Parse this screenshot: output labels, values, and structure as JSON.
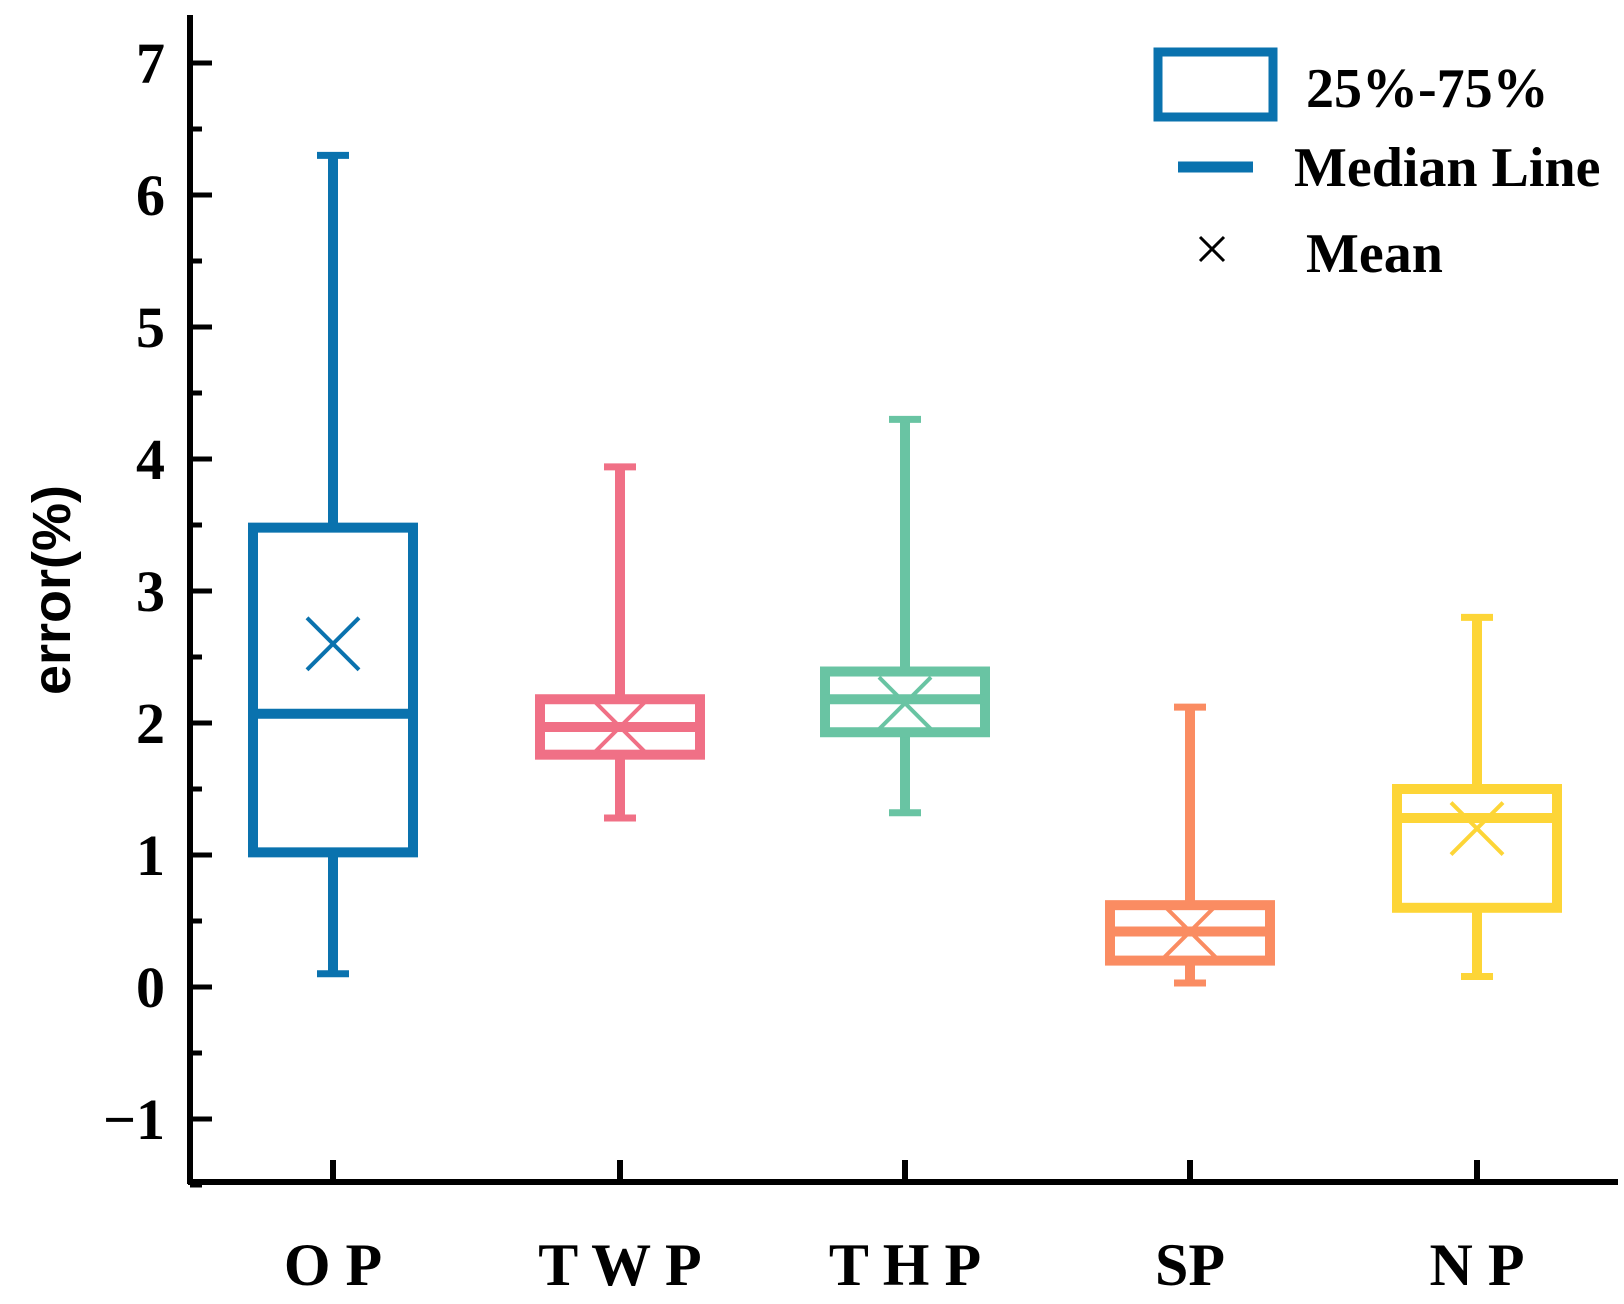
{
  "chart_data": {
    "type": "box",
    "title": "",
    "xlabel": "",
    "ylabel": "error(%)",
    "ylim": [
      -1.5,
      7.4
    ],
    "yticks": [
      -1,
      0,
      1,
      2,
      3,
      4,
      5,
      6,
      7
    ],
    "ytick_labels": [
      "−1",
      "0",
      "1",
      "2",
      "3",
      "4",
      "5",
      "6",
      "7"
    ],
    "categories": [
      "O P",
      "T W P",
      "T H P",
      "SP",
      "N P"
    ],
    "boxes": [
      {
        "name": "O P",
        "min": 0.1,
        "q1": 1.02,
        "median": 2.07,
        "q3": 3.48,
        "max": 6.3,
        "mean": 2.6,
        "color": "#0A72AE"
      },
      {
        "name": "T W P",
        "min": 1.28,
        "q1": 1.76,
        "median": 1.97,
        "q3": 2.18,
        "max": 3.94,
        "mean": 1.97,
        "color": "#F07086"
      },
      {
        "name": "T H P",
        "min": 1.32,
        "q1": 1.93,
        "median": 2.18,
        "q3": 2.39,
        "max": 4.3,
        "mean": 2.15,
        "color": "#69C4A3"
      },
      {
        "name": "SP",
        "min": 0.03,
        "q1": 0.2,
        "median": 0.42,
        "q3": 0.62,
        "max": 2.12,
        "mean": 0.42,
        "color": "#FA8C62"
      },
      {
        "name": "N P",
        "min": 0.08,
        "q1": 0.6,
        "median": 1.28,
        "q3": 1.5,
        "max": 2.8,
        "mean": 1.2,
        "color": "#FDD537"
      }
    ],
    "legend": {
      "position": "top-right",
      "entries": [
        {
          "label": "25%-75%",
          "symbol": "box",
          "color": "#0A72AE"
        },
        {
          "label": "Median Line",
          "symbol": "line",
          "color": "#0A72AE"
        },
        {
          "label": "Mean",
          "symbol": "cross",
          "color": "#000000"
        }
      ]
    },
    "grid": false
  }
}
